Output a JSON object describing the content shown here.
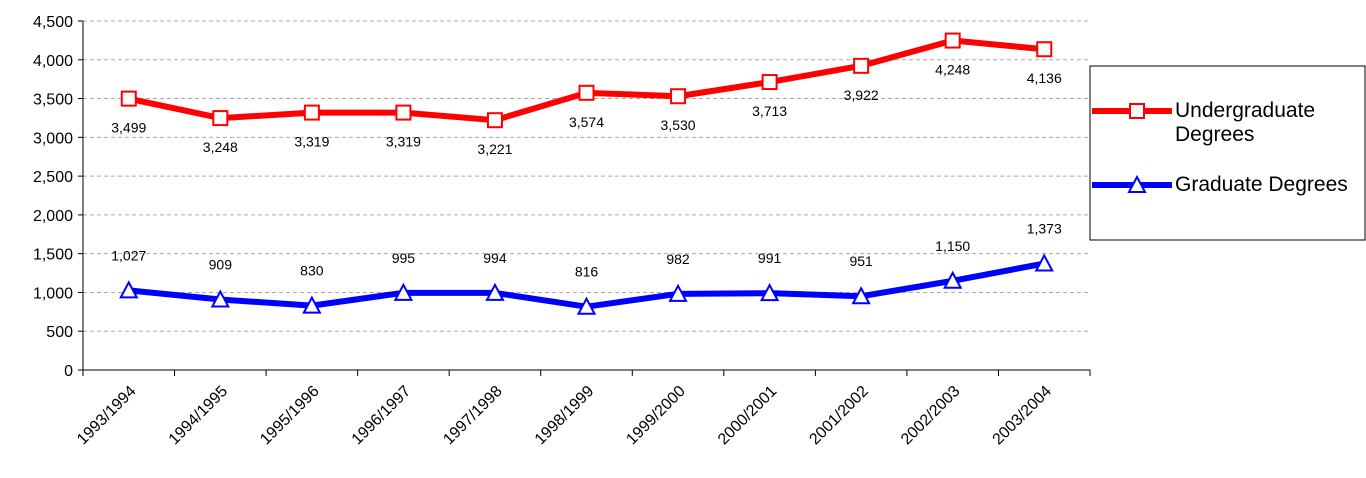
{
  "chart_data": {
    "type": "line",
    "categories": [
      "1993/1994",
      "1994/1995",
      "1995/1996",
      "1996/1997",
      "1997/1998",
      "1998/1999",
      "1999/2000",
      "2000/2001",
      "2001/2002",
      "2002/2003",
      "2003/2004"
    ],
    "series": [
      {
        "name": "Undergraduate Degrees",
        "color": "#ff0000",
        "marker": "square",
        "values": [
          3499,
          3248,
          3319,
          3319,
          3221,
          3574,
          3530,
          3713,
          3922,
          4248,
          4136
        ],
        "value_labels": [
          "3,499",
          "3,248",
          "3,319",
          "3,319",
          "3,221",
          "3,574",
          "3,530",
          "3,713",
          "3,922",
          "4,248",
          "4,136"
        ]
      },
      {
        "name": "Graduate Degrees",
        "color": "#0000ff",
        "marker": "triangle",
        "values": [
          1027,
          909,
          830,
          995,
          994,
          816,
          982,
          991,
          951,
          1150,
          1373
        ],
        "value_labels": [
          "1,027",
          "909",
          "830",
          "995",
          "994",
          "816",
          "982",
          "991",
          "951",
          "1,150",
          "1,373"
        ]
      }
    ],
    "ylim": [
      0,
      4500
    ],
    "yticks": [
      0,
      500,
      {
        "value": 1000,
        "label": "1,000"
      },
      {
        "value": 1500,
        "label": "1,500"
      },
      {
        "value": 2000,
        "label": "2,000"
      },
      {
        "value": 2500,
        "label": "2,500"
      },
      {
        "value": 3000,
        "label": "3,000"
      },
      {
        "value": 3500,
        "label": "3,500"
      },
      {
        "value": 4000,
        "label": "4,000"
      },
      {
        "value": 4500,
        "label": "4,500"
      }
    ],
    "grid": true
  }
}
